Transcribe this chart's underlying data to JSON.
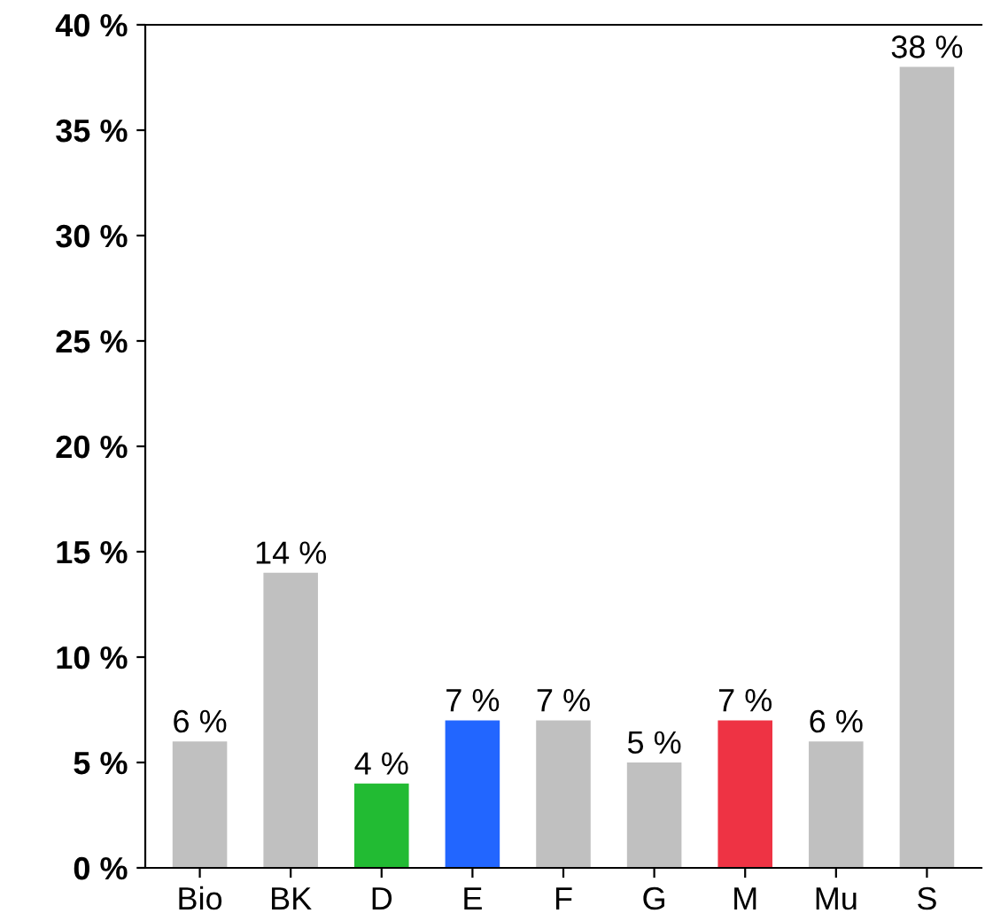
{
  "chart_data": {
    "type": "bar",
    "categories": [
      "Bio",
      "BK",
      "D",
      "E",
      "F",
      "G",
      "M",
      "Mu",
      "S"
    ],
    "values": [
      6,
      14,
      4,
      7,
      7,
      5,
      7,
      6,
      38
    ],
    "colors": [
      "#c0c0c0",
      "#c0c0c0",
      "#22bb33",
      "#2266ff",
      "#c0c0c0",
      "#c0c0c0",
      "#ee3344",
      "#c0c0c0",
      "#c0c0c0"
    ],
    "value_labels": [
      "6 %",
      "14 %",
      "4 %",
      "7 %",
      "7 %",
      "5 %",
      "7 %",
      "6 %",
      "38 %"
    ],
    "ylim": [
      0,
      40
    ],
    "yticks": [
      {
        "value": 0,
        "label": "0 %"
      },
      {
        "value": 5,
        "label": "5 %"
      },
      {
        "value": 10,
        "label": "10 %"
      },
      {
        "value": 15,
        "label": "15 %"
      },
      {
        "value": 20,
        "label": "20 %"
      },
      {
        "value": 25,
        "label": "25 %"
      },
      {
        "value": 30,
        "label": "30 %"
      },
      {
        "value": 35,
        "label": "35 %"
      },
      {
        "value": 40,
        "label": "40 %"
      }
    ],
    "grid": false,
    "legend": false
  }
}
